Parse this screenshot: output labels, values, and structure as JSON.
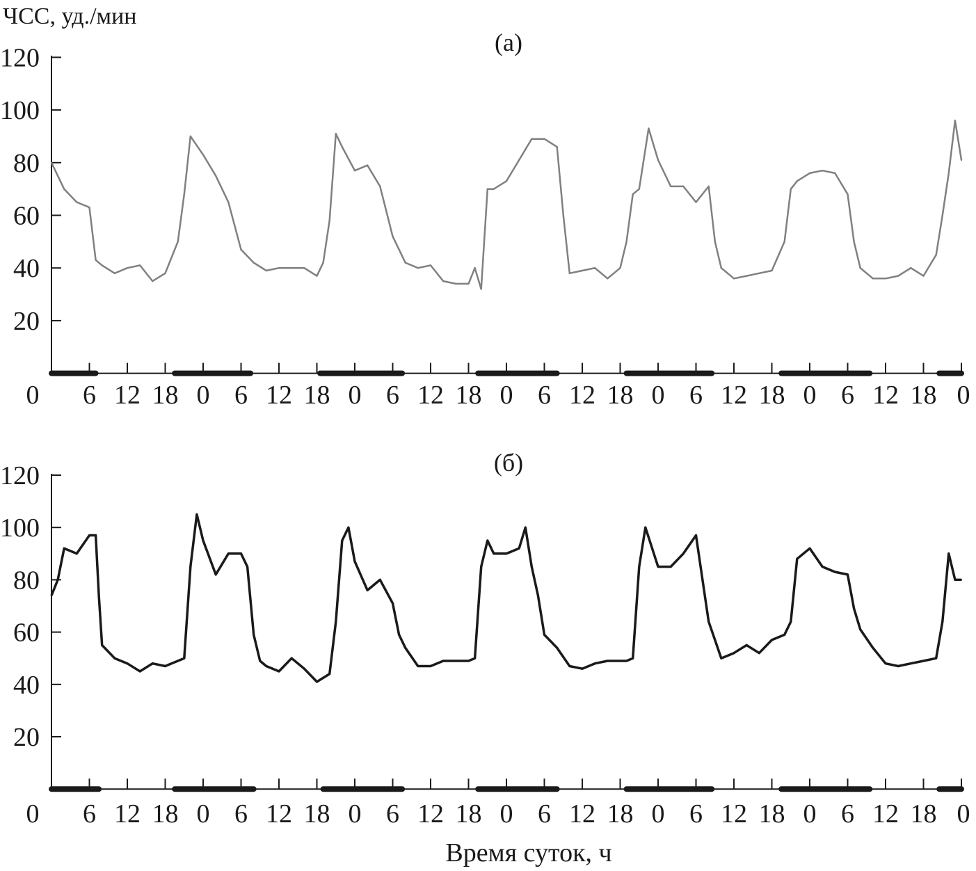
{
  "chart_data": [
    {
      "type": "line",
      "panel_label": "(а)",
      "ylabel": "ЧСС, уд./мин",
      "xlabel": "",
      "ylim": [
        0,
        120
      ],
      "yticks": [
        20,
        40,
        60,
        80,
        100,
        120
      ],
      "xlim": [
        0,
        144
      ],
      "xtick_labels": [
        "0",
        "6",
        "12",
        "18",
        "0",
        "6",
        "12",
        "18",
        "0",
        "6",
        "12",
        "18",
        "0",
        "6",
        "12",
        "18",
        "0",
        "6",
        "12",
        "18",
        "0",
        "6",
        "12",
        "18",
        "0"
      ],
      "grid": false,
      "night_periods": [
        [
          0,
          7
        ],
        [
          19.5,
          31.5
        ],
        [
          42.5,
          55.5
        ],
        [
          67.5,
          80
        ],
        [
          91,
          104.5
        ],
        [
          115.5,
          129.5
        ],
        [
          140.5,
          144
        ]
      ],
      "color": "#808080",
      "series": [
        {
          "points": [
            [
              0,
              80
            ],
            [
              2,
              70
            ],
            [
              4,
              65
            ],
            [
              6,
              63
            ],
            [
              7,
              43
            ],
            [
              8,
              41
            ],
            [
              10,
              38
            ],
            [
              12,
              40
            ],
            [
              14,
              41
            ],
            [
              16,
              35
            ],
            [
              18,
              38
            ],
            [
              20,
              50
            ],
            [
              21,
              68
            ],
            [
              22,
              90
            ],
            [
              24,
              83
            ],
            [
              26,
              75
            ],
            [
              28,
              65
            ],
            [
              30,
              47
            ],
            [
              32,
              42
            ],
            [
              34,
              39
            ],
            [
              36,
              40
            ],
            [
              38,
              40
            ],
            [
              40,
              40
            ],
            [
              42,
              37
            ],
            [
              43,
              42
            ],
            [
              44,
              58
            ],
            [
              45,
              91
            ],
            [
              46,
              86
            ],
            [
              48,
              77
            ],
            [
              50,
              79
            ],
            [
              52,
              71
            ],
            [
              54,
              52
            ],
            [
              56,
              42
            ],
            [
              58,
              40
            ],
            [
              60,
              41
            ],
            [
              62,
              35
            ],
            [
              64,
              34
            ],
            [
              66,
              34
            ],
            [
              67,
              40
            ],
            [
              68,
              32
            ],
            [
              69,
              70
            ],
            [
              70,
              70
            ],
            [
              72,
              73
            ],
            [
              74,
              81
            ],
            [
              76,
              89
            ],
            [
              78,
              89
            ],
            [
              80,
              86
            ],
            [
              81,
              60
            ],
            [
              82,
              38
            ],
            [
              84,
              39
            ],
            [
              86,
              40
            ],
            [
              88,
              36
            ],
            [
              90,
              40
            ],
            [
              91,
              50
            ],
            [
              92,
              68
            ],
            [
              93,
              70
            ],
            [
              94.5,
              93
            ],
            [
              96,
              81
            ],
            [
              98,
              71
            ],
            [
              100,
              71
            ],
            [
              102,
              65
            ],
            [
              104,
              71
            ],
            [
              105,
              50
            ],
            [
              106,
              40
            ],
            [
              108,
              36
            ],
            [
              110,
              37
            ],
            [
              112,
              38
            ],
            [
              114,
              39
            ],
            [
              116,
              50
            ],
            [
              117,
              70
            ],
            [
              118,
              73
            ],
            [
              120,
              76
            ],
            [
              122,
              77
            ],
            [
              124,
              76
            ],
            [
              126,
              68
            ],
            [
              127,
              50
            ],
            [
              128,
              40
            ],
            [
              130,
              36
            ],
            [
              132,
              36
            ],
            [
              134,
              37
            ],
            [
              136,
              40
            ],
            [
              138,
              37
            ],
            [
              140,
              45
            ],
            [
              141,
              60
            ],
            [
              142,
              76
            ],
            [
              143,
              96
            ],
            [
              144,
              81
            ]
          ]
        }
      ]
    },
    {
      "type": "line",
      "panel_label": "(б)",
      "xlabel": "Время суток, ч",
      "ylim": [
        0,
        120
      ],
      "yticks": [
        20,
        40,
        60,
        80,
        100,
        120
      ],
      "xlim": [
        0,
        144
      ],
      "xtick_labels": [
        "0",
        "6",
        "12",
        "18",
        "0",
        "6",
        "12",
        "18",
        "0",
        "6",
        "12",
        "18",
        "0",
        "6",
        "12",
        "18",
        "0",
        "6",
        "12",
        "18",
        "0",
        "6",
        "12",
        "18",
        "0"
      ],
      "grid": false,
      "night_periods": [
        [
          0,
          7.5
        ],
        [
          19.5,
          32
        ],
        [
          43,
          55.5
        ],
        [
          67.5,
          80
        ],
        [
          91,
          104.5
        ],
        [
          115.5,
          129.5
        ],
        [
          140.5,
          144
        ]
      ],
      "color": "#1a1a1a",
      "series": [
        {
          "points": [
            [
              0,
              74
            ],
            [
              1,
              80
            ],
            [
              2,
              92
            ],
            [
              4,
              90
            ],
            [
              6,
              97
            ],
            [
              7,
              97
            ],
            [
              7.5,
              74
            ],
            [
              8,
              55
            ],
            [
              10,
              50
            ],
            [
              12,
              48
            ],
            [
              14,
              45
            ],
            [
              16,
              48
            ],
            [
              18,
              47
            ],
            [
              20,
              49
            ],
            [
              21,
              50
            ],
            [
              22,
              85
            ],
            [
              23,
              105
            ],
            [
              24,
              95
            ],
            [
              26,
              82
            ],
            [
              28,
              90
            ],
            [
              30,
              90
            ],
            [
              31,
              85
            ],
            [
              32,
              59
            ],
            [
              33,
              49
            ],
            [
              34,
              47
            ],
            [
              36,
              45
            ],
            [
              38,
              50
            ],
            [
              40,
              46
            ],
            [
              42,
              41
            ],
            [
              44,
              44
            ],
            [
              45,
              64
            ],
            [
              46,
              95
            ],
            [
              47,
              100
            ],
            [
              48,
              87
            ],
            [
              50,
              76
            ],
            [
              52,
              80
            ],
            [
              54,
              71
            ],
            [
              55,
              59
            ],
            [
              56,
              54
            ],
            [
              58,
              47
            ],
            [
              60,
              47
            ],
            [
              62,
              49
            ],
            [
              64,
              49
            ],
            [
              66,
              49
            ],
            [
              67,
              50
            ],
            [
              68,
              85
            ],
            [
              69,
              95
            ],
            [
              70,
              90
            ],
            [
              72,
              90
            ],
            [
              74,
              92
            ],
            [
              75,
              100
            ],
            [
              76,
              85
            ],
            [
              77,
              74
            ],
            [
              78,
              59
            ],
            [
              80,
              54
            ],
            [
              82,
              47
            ],
            [
              84,
              46
            ],
            [
              86,
              48
            ],
            [
              88,
              49
            ],
            [
              90,
              49
            ],
            [
              91,
              49
            ],
            [
              92,
              50
            ],
            [
              93,
              85
            ],
            [
              94,
              100
            ],
            [
              96,
              85
            ],
            [
              98,
              85
            ],
            [
              100,
              90
            ],
            [
              102,
              97
            ],
            [
              104,
              64
            ],
            [
              105,
              57
            ],
            [
              106,
              50
            ],
            [
              108,
              52
            ],
            [
              110,
              55
            ],
            [
              112,
              52
            ],
            [
              114,
              57
            ],
            [
              116,
              59
            ],
            [
              117,
              64
            ],
            [
              118,
              88
            ],
            [
              120,
              92
            ],
            [
              122,
              85
            ],
            [
              124,
              83
            ],
            [
              126,
              82
            ],
            [
              127,
              69
            ],
            [
              128,
              61
            ],
            [
              130,
              54
            ],
            [
              132,
              48
            ],
            [
              134,
              47
            ],
            [
              136,
              48
            ],
            [
              138,
              49
            ],
            [
              140,
              50
            ],
            [
              141,
              64
            ],
            [
              142,
              90
            ],
            [
              143,
              80
            ],
            [
              144,
              80
            ]
          ]
        }
      ]
    }
  ]
}
